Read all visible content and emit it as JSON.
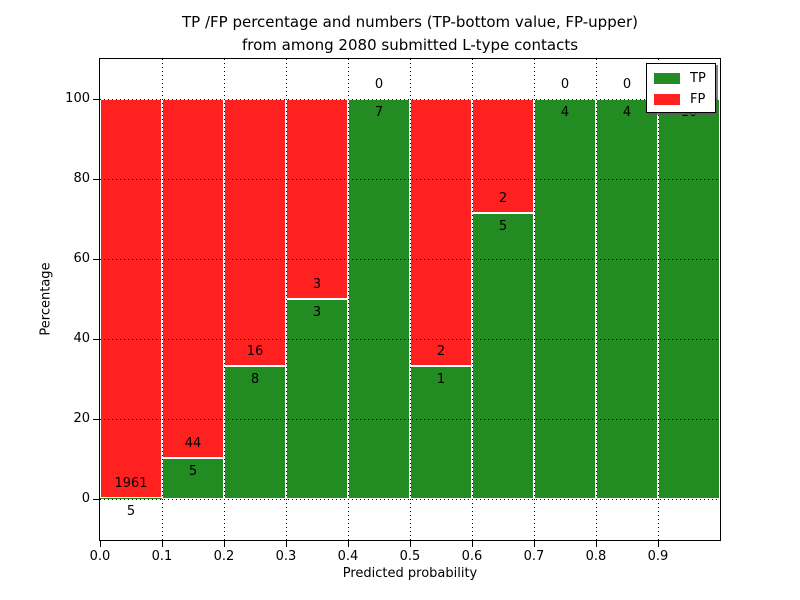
{
  "title": {
    "line1": "TP /FP percentage and numbers (TP-bottom value, FP-upper)",
    "line2": "from among 2080 submitted L-type contacts"
  },
  "chart_data": {
    "type": "bar",
    "stacked": true,
    "title": "TP /FP percentage and numbers (TP-bottom value, FP-upper) from among 2080 submitted L-type contacts",
    "xlabel": "Predicted probability",
    "ylabel": "Percentage",
    "total_contacts": 2080,
    "bin_width": 0.1,
    "bins": [
      {
        "range": "0.0-0.1",
        "tp": 5,
        "fp": 1961,
        "tp_pct": 0.25
      },
      {
        "range": "0.1-0.2",
        "tp": 5,
        "fp": 44,
        "tp_pct": 10.2
      },
      {
        "range": "0.2-0.3",
        "tp": 8,
        "fp": 16,
        "tp_pct": 33.33
      },
      {
        "range": "0.3-0.4",
        "tp": 3,
        "fp": 3,
        "tp_pct": 50.0
      },
      {
        "range": "0.4-0.5",
        "tp": 7,
        "fp": 0,
        "tp_pct": 100.0
      },
      {
        "range": "0.5-0.6",
        "tp": 1,
        "fp": 2,
        "tp_pct": 33.33
      },
      {
        "range": "0.6-0.7",
        "tp": 5,
        "fp": 2,
        "tp_pct": 71.43
      },
      {
        "range": "0.7-0.8",
        "tp": 4,
        "fp": 0,
        "tp_pct": 100.0
      },
      {
        "range": "0.8-0.9",
        "tp": 4,
        "fp": 0,
        "tp_pct": 100.0
      },
      {
        "range": "0.9-1.0",
        "tp": 10,
        "fp": 0,
        "tp_pct": 100.0
      }
    ],
    "series": [
      {
        "name": "TP",
        "color": "#228b22"
      },
      {
        "name": "FP",
        "color": "#ff2020"
      }
    ],
    "xticks": [
      "0.0",
      "0.1",
      "0.2",
      "0.3",
      "0.4",
      "0.5",
      "0.6",
      "0.7",
      "0.8",
      "0.9"
    ],
    "yticks": [
      "0",
      "20",
      "40",
      "60",
      "80",
      "100"
    ],
    "xlim": [
      0.0,
      1.0
    ],
    "ylim": [
      -10,
      110
    ],
    "grid": "dotted",
    "legend_position": "upper-right",
    "legend_entries": [
      "TP",
      "FP"
    ]
  }
}
